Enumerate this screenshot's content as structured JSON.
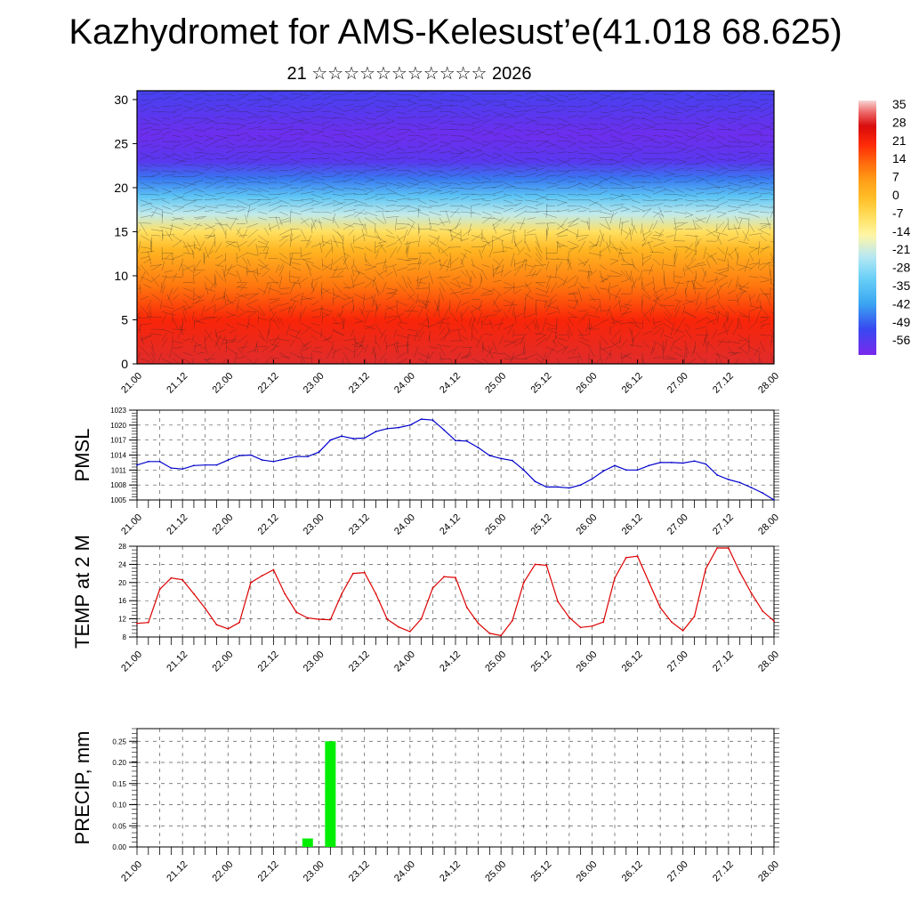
{
  "page": {
    "title": "Kazhydromet for AMS-Kelesust’e(41.018 68.625)",
    "subtitle": "21 ☆☆☆☆☆☆☆☆☆☆☆ 2026"
  },
  "colors": {
    "pmsl_line": "#0000cc",
    "temp_line": "#dd0000",
    "precip_bar": "#00ee00",
    "grid": "#555555"
  },
  "time_ticks": [
    "21.00",
    "21.12",
    "22.00",
    "22.12",
    "23.00",
    "23.12",
    "24.00",
    "24.12",
    "25.00",
    "25.12",
    "26.00",
    "26.12",
    "27.00",
    "27.12",
    "28.00"
  ],
  "chart_data": [
    {
      "type": "heatmap",
      "name": "vertical cross-section",
      "title": "",
      "xlabel": "",
      "ylabel": "",
      "ylim": [
        0,
        31
      ],
      "yticks": [
        0,
        5,
        10,
        15,
        20,
        25,
        30
      ],
      "colorbar": {
        "labels": [
          "35",
          "28",
          "21",
          "14",
          "7",
          "0",
          "-7",
          "-14",
          "-21",
          "-28",
          "-35",
          "-42",
          "-49",
          "-56"
        ],
        "range": [
          -60,
          38
        ]
      },
      "temperature_profile": [
        {
          "level": 0,
          "value": 30
        },
        {
          "level": 5,
          "value": 22
        },
        {
          "level": 9,
          "value": 12
        },
        {
          "level": 13,
          "value": 2
        },
        {
          "level": 15,
          "value": -7
        },
        {
          "level": 17,
          "value": -21
        },
        {
          "level": 19,
          "value": -33
        },
        {
          "level": 21,
          "value": -45
        },
        {
          "level": 23,
          "value": -55
        },
        {
          "level": 26,
          "value": -58
        },
        {
          "level": 31,
          "value": -52
        }
      ]
    },
    {
      "type": "line",
      "name": "PMSL",
      "title": "",
      "ylabel": "PMSL",
      "ylim": [
        1005,
        1023
      ],
      "yticks": [
        1005,
        1008,
        1011,
        1014,
        1017,
        1020,
        1023
      ],
      "grid": true,
      "x": [
        0,
        3,
        6,
        9,
        12,
        15,
        18,
        21,
        24,
        27,
        30,
        33,
        36,
        39,
        42,
        45,
        48,
        51,
        54,
        57,
        60,
        63,
        66,
        69,
        72,
        75,
        78,
        81,
        84,
        87,
        90,
        93,
        96,
        99,
        102,
        105,
        108,
        111,
        114,
        117,
        120,
        123,
        126,
        129,
        132,
        135,
        138,
        141,
        144,
        147,
        150,
        153,
        156,
        159,
        162,
        165,
        168
      ],
      "values": [
        1012,
        1012.7,
        1012.7,
        1011.4,
        1011.2,
        1011.9,
        1012,
        1012,
        1013,
        1013.9,
        1014,
        1013,
        1012.7,
        1013.2,
        1013.7,
        1013.7,
        1014.6,
        1017,
        1017.8,
        1017.3,
        1017.4,
        1018.7,
        1019.3,
        1019.5,
        1020,
        1021.2,
        1021,
        1019,
        1016.9,
        1016.8,
        1015.5,
        1013.9,
        1013.3,
        1012.9,
        1011,
        1008.7,
        1007.6,
        1007.6,
        1007.4,
        1008,
        1009.2,
        1010.8,
        1011.9,
        1011,
        1011,
        1011.9,
        1012.5,
        1012.5,
        1012.4,
        1012.8,
        1012.2,
        1010,
        1009.1,
        1008.5,
        1007.5,
        1006.4,
        1005
      ]
    },
    {
      "type": "line",
      "name": "TEMP at 2 M",
      "title": "",
      "ylabel": "TEMP at 2 M",
      "ylim": [
        8,
        28
      ],
      "yticks": [
        8,
        12,
        16,
        20,
        24,
        28
      ],
      "grid": true,
      "x": [
        0,
        3,
        6,
        9,
        12,
        15,
        18,
        21,
        24,
        27,
        30,
        33,
        36,
        39,
        42,
        45,
        48,
        51,
        54,
        57,
        60,
        63,
        66,
        69,
        72,
        75,
        78,
        81,
        84,
        87,
        90,
        93,
        96,
        99,
        102,
        105,
        108,
        111,
        114,
        117,
        120,
        123,
        126,
        129,
        132,
        135,
        138,
        141,
        144,
        147,
        150,
        153,
        156,
        159,
        162,
        165,
        168
      ],
      "values": [
        11,
        11.2,
        18.5,
        21,
        20.6,
        17.5,
        14.3,
        10.7,
        9.8,
        11.2,
        20,
        21.5,
        22.8,
        17.5,
        13.5,
        12.2,
        11.9,
        11.8,
        17.5,
        22,
        22.2,
        17.5,
        11.9,
        10.2,
        9.2,
        12,
        18.8,
        21.3,
        21.1,
        14.5,
        11,
        8.8,
        8.3,
        11.6,
        20,
        24,
        23.8,
        15.8,
        12.3,
        10.1,
        10.4,
        11.3,
        21,
        25.5,
        25.8,
        20.1,
        14.5,
        11.3,
        9.4,
        12.5,
        23,
        27.6,
        27.6,
        22.3,
        17.7,
        13.7,
        11.5
      ]
    },
    {
      "type": "bar",
      "name": "PRECIP",
      "title": "",
      "ylabel": "PRECIP, mm",
      "ylim": [
        0,
        0.28
      ],
      "yticks": [
        "0.00",
        "0.05",
        "0.10",
        "0.15",
        "0.20",
        "0.25"
      ],
      "grid": true,
      "bars": [
        {
          "x": 45,
          "value": 0.02
        },
        {
          "x": 51,
          "value": 0.25
        }
      ]
    }
  ]
}
